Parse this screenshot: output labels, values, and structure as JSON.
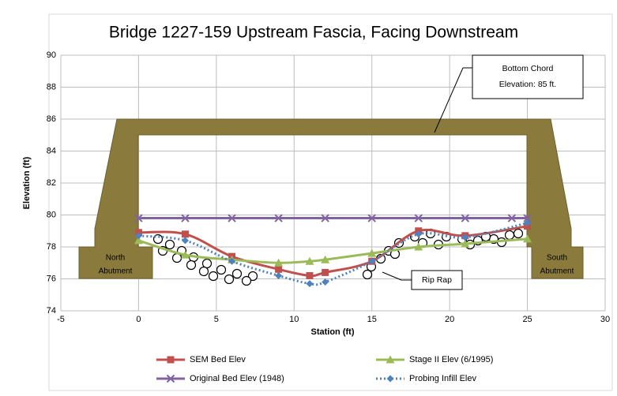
{
  "chart_data": {
    "type": "line",
    "title": "Bridge 1227-159 Upstream Fascia, Facing Downstream",
    "x_label": "Station (ft)",
    "y_label": "Elevation (ft)",
    "xlim": [
      -5,
      30
    ],
    "ylim": [
      74,
      90
    ],
    "xticks": [
      -5,
      0,
      5,
      10,
      15,
      20,
      25,
      30
    ],
    "yticks": [
      74,
      76,
      78,
      80,
      82,
      84,
      86,
      88,
      90
    ],
    "grid": true,
    "smooth": true,
    "series": [
      {
        "name": "SEM Bed Elev",
        "color": "#c0504d",
        "marker": "square",
        "dash": false,
        "x": [
          0,
          3,
          6,
          9,
          11,
          12,
          15,
          18,
          21,
          25
        ],
        "values": [
          78.9,
          78.8,
          77.4,
          76.6,
          76.2,
          76.4,
          77.1,
          79.0,
          78.7,
          79.3
        ]
      },
      {
        "name": "Stage II Elev (6/1995)",
        "color": "#9bbb59",
        "marker": "triangle",
        "dash": false,
        "x": [
          0,
          3,
          6,
          9,
          11,
          12,
          15,
          18,
          21,
          25
        ],
        "values": [
          78.4,
          77.5,
          77.2,
          77.0,
          77.1,
          77.2,
          77.6,
          78.0,
          78.2,
          78.5
        ]
      },
      {
        "name": "Original Bed Elev (1948)",
        "color": "#8064a2",
        "marker": "x",
        "dash": false,
        "x": [
          0,
          3,
          6,
          9,
          12,
          15,
          18,
          21,
          24,
          25
        ],
        "values": [
          79.8,
          79.8,
          79.8,
          79.8,
          79.8,
          79.8,
          79.8,
          79.8,
          79.8,
          79.8
        ]
      },
      {
        "name": "Probing Infill Elev",
        "color": "#4f81bd",
        "marker": "diamond",
        "dash": true,
        "x": [
          0,
          3,
          6,
          9,
          11,
          12,
          15,
          18,
          21,
          25
        ],
        "values": [
          78.7,
          78.4,
          77.1,
          76.2,
          75.7,
          75.8,
          77.1,
          78.8,
          78.6,
          79.5
        ]
      }
    ],
    "annotations": {
      "bottom_chord": [
        "Bottom Chord",
        "Elevation: 85 ft."
      ],
      "north": [
        "North",
        "Abutment"
      ],
      "south": [
        "South",
        "Abutment"
      ],
      "rip_rap": "Rip Rap"
    }
  }
}
